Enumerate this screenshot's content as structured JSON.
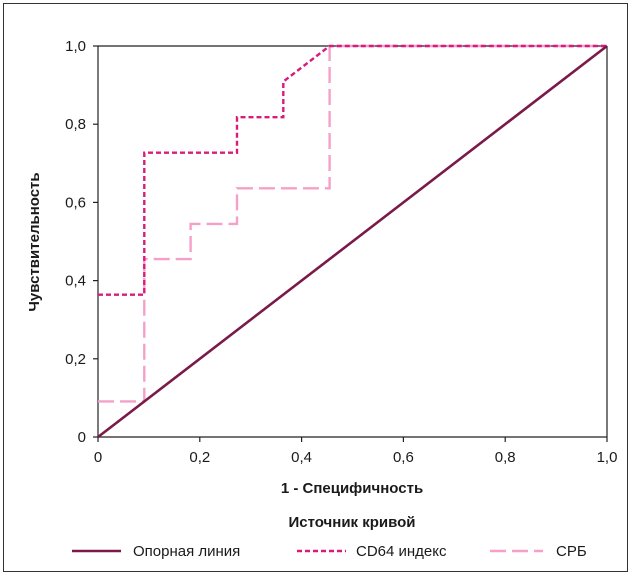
{
  "chart_data": {
    "type": "line",
    "title": "",
    "xlabel": "1 - Специфичность",
    "ylabel": "Чувствительность",
    "xlim": [
      0,
      1
    ],
    "ylim": [
      0,
      1
    ],
    "grid": false,
    "x_ticks": [
      "0",
      "0,2",
      "0,4",
      "0,6",
      "0,8",
      "1,0"
    ],
    "y_ticks": [
      "0",
      "0,2",
      "0,4",
      "0,6",
      "0,8",
      "1,0"
    ],
    "legend_title": "Источник кривой",
    "legend_position": "bottom",
    "series": [
      {
        "name": "Опорная линия",
        "style": "solid",
        "color": "#7a1a4a",
        "x": [
          0,
          1
        ],
        "y": [
          0,
          1
        ]
      },
      {
        "name": "CD64 индекс",
        "style": "short-dash",
        "color": "#d81b7c",
        "x": [
          0,
          0.091,
          0.091,
          0.273,
          0.273,
          0.364,
          0.364,
          0.455,
          1.0
        ],
        "y": [
          0.364,
          0.364,
          0.727,
          0.727,
          0.818,
          0.818,
          0.909,
          1.0,
          1.0
        ]
      },
      {
        "name": "СРБ",
        "style": "long-dash",
        "color": "#f4a0c8",
        "x": [
          0,
          0.091,
          0.091,
          0.182,
          0.182,
          0.273,
          0.273,
          0.455,
          0.455,
          1.0
        ],
        "y": [
          0.091,
          0.091,
          0.455,
          0.455,
          0.545,
          0.545,
          0.636,
          0.636,
          1.0,
          1.0
        ]
      }
    ]
  }
}
